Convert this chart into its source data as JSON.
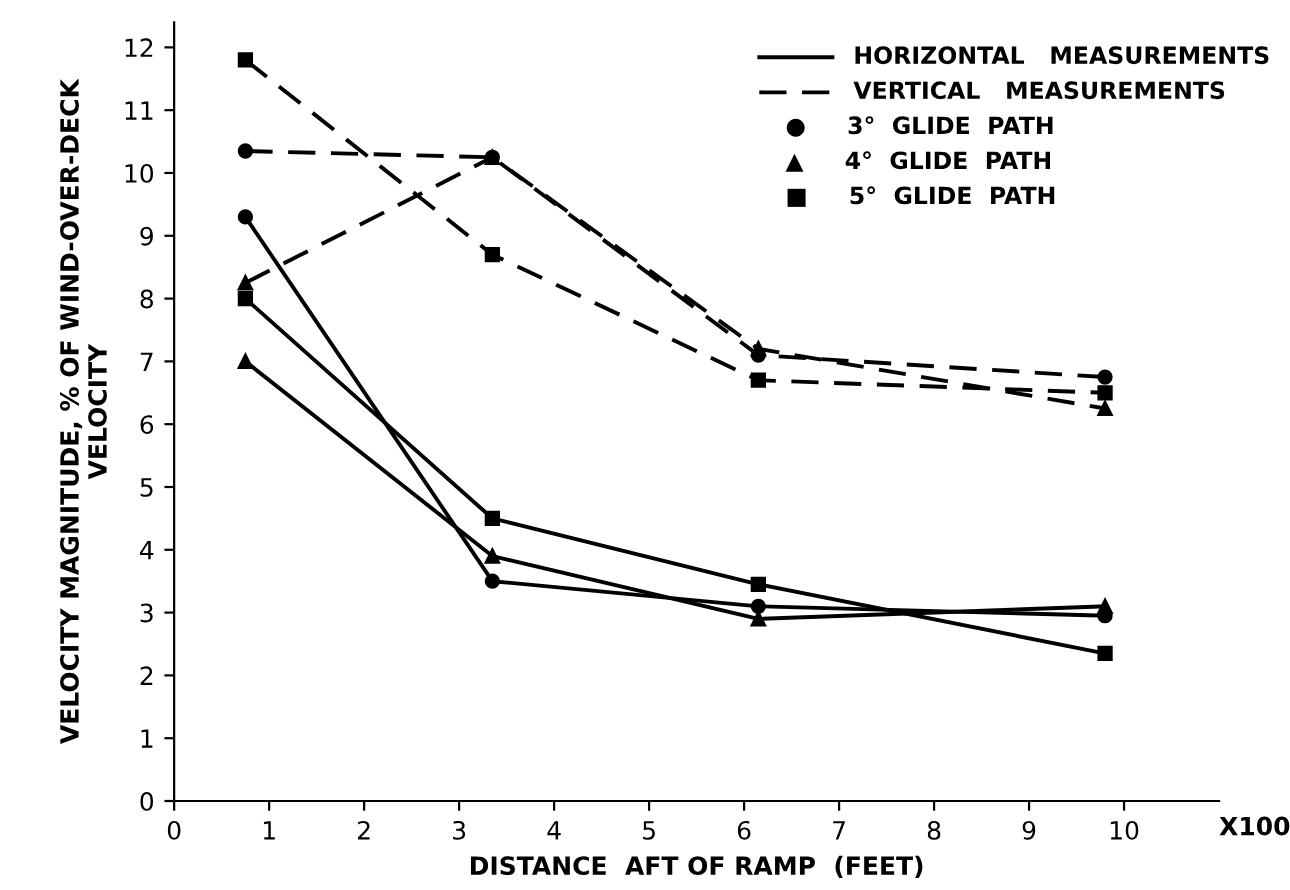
{
  "chart_data": {
    "type": "line",
    "xlabel": "DISTANCE  AFT OF RAMP  (FEET)",
    "ylabel": "VELOCITY MAGNITUDE, % OF WIND-OVER-DECK\nVELOCITY",
    "x": [
      0.75,
      3.35,
      6.15,
      9.8
    ],
    "series": [
      {
        "color": "#000000",
        "marker": "circle",
        "line_style": "solid",
        "values": [
          9.3,
          3.5,
          3.1,
          2.95
        ]
      },
      {
        "color": "#000000",
        "marker": "triangle",
        "line_style": "solid",
        "values": [
          7.0,
          3.9,
          2.9,
          3.1
        ]
      },
      {
        "color": "#000000",
        "marker": "square",
        "line_style": "solid",
        "values": [
          8.0,
          4.5,
          3.45,
          2.35
        ]
      },
      {
        "color": "#000000",
        "marker": "circle",
        "line_style": "dashed",
        "values": [
          10.35,
          10.25,
          7.1,
          6.75
        ]
      },
      {
        "color": "#000000",
        "marker": "triangle",
        "line_style": "dashed",
        "values": [
          8.25,
          10.25,
          7.2,
          6.25
        ]
      },
      {
        "color": "#000000",
        "marker": "square",
        "line_style": "dashed",
        "values": [
          11.8,
          8.7,
          6.7,
          6.5
        ]
      }
    ],
    "annotations": [
      "HORIZONTAL   MEASUREMENTS",
      "VERTICAL   MEASUREMENTS",
      "●     3°  GLIDE  PATH",
      "▲     4°  GLIDE  PATH",
      "■     5°  GLIDE  PATH",
      "X100"
    ],
    "xlim": [
      0,
      11
    ],
    "xticks": [
      0,
      1,
      2,
      3,
      4,
      5,
      6,
      7,
      8,
      9,
      10
    ],
    "ylim": [
      0,
      12.4
    ],
    "yticks": [
      0,
      1,
      2,
      3,
      4,
      5,
      6,
      7,
      8,
      9,
      10,
      11,
      12
    ],
    "grid": false
  }
}
